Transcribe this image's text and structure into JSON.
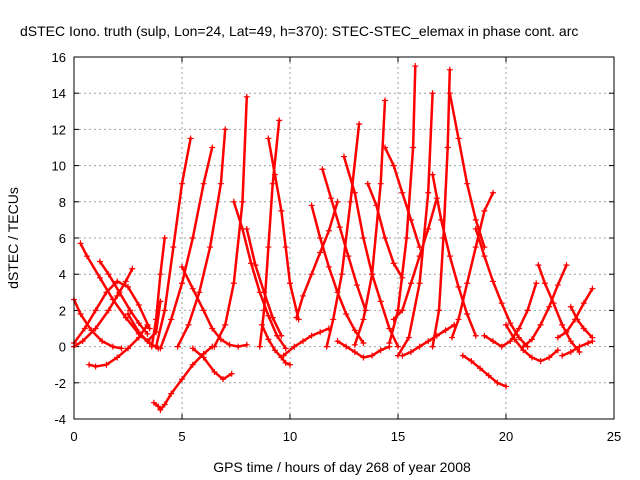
{
  "chart_data": {
    "type": "scatter",
    "title": "dSTEC Iono. truth (sulp, Lon=24, Lat=49, h=370): STEC-STEC_elemax in phase cont. arc",
    "xlabel": "GPS time / hours of day 268 of year 2008",
    "ylabel": "dSTEC  / TECUs",
    "xlim": [
      0,
      25
    ],
    "ylim": [
      -4,
      16
    ],
    "xticks": [
      0,
      5,
      10,
      15,
      20,
      25
    ],
    "yticks": [
      -4,
      -2,
      0,
      2,
      4,
      6,
      8,
      10,
      12,
      14,
      16
    ],
    "grid": true,
    "marker": "+",
    "series_color": "#ff0000",
    "series": [
      {
        "x": [
          0.0,
          0.3,
          0.8,
          1.3,
          1.8,
          2.2
        ],
        "y": [
          2.6,
          1.8,
          0.9,
          0.3,
          0.0,
          -0.1
        ]
      },
      {
        "x": [
          0.0,
          0.4,
          1.0,
          1.6,
          2.0,
          2.4,
          2.7
        ],
        "y": [
          0.0,
          0.3,
          1.0,
          2.0,
          2.8,
          3.6,
          4.3
        ]
      },
      {
        "x": [
          0.3,
          0.6,
          1.2,
          1.8,
          2.4,
          3.0,
          3.5,
          3.9
        ],
        "y": [
          5.7,
          5.0,
          3.8,
          2.6,
          1.6,
          0.7,
          0.2,
          -0.1
        ]
      },
      {
        "x": [
          0.7,
          1.0,
          1.5,
          2.0,
          2.5,
          3.0,
          3.4
        ],
        "y": [
          -1.0,
          -1.1,
          -1.0,
          -0.6,
          -0.1,
          0.5,
          1.2
        ]
      },
      {
        "x": [
          1.2,
          1.6,
          2.1,
          2.6,
          3.0,
          3.4
        ],
        "y": [
          4.7,
          4.0,
          3.0,
          2.0,
          1.3,
          0.7
        ]
      },
      {
        "x": [
          0.0,
          0.5,
          1.0,
          1.5,
          2.0,
          2.5,
          3.0,
          3.5
        ],
        "y": [
          0.2,
          1.0,
          2.0,
          3.0,
          3.6,
          3.3,
          2.3,
          1.0
        ]
      },
      {
        "x": [
          2.5,
          3.0,
          3.4,
          3.8,
          4.0
        ],
        "y": [
          1.8,
          0.8,
          0.3,
          0.8,
          2.5
        ]
      },
      {
        "x": [
          3.6,
          3.8,
          4.0,
          4.2
        ],
        "y": [
          0.0,
          1.5,
          4.0,
          6.0
        ]
      },
      {
        "x": [
          3.7,
          3.9,
          4.0,
          4.2,
          4.5,
          5.0,
          5.5,
          6.0,
          6.4
        ],
        "y": [
          -3.1,
          -3.3,
          -3.5,
          -3.2,
          -2.6,
          -1.8,
          -1.0,
          -0.4,
          0.0
        ]
      },
      {
        "x": [
          3.8,
          4.2,
          4.6,
          5.0,
          5.4
        ],
        "y": [
          0.0,
          2.0,
          5.5,
          9.0,
          11.5
        ]
      },
      {
        "x": [
          4.0,
          4.5,
          5.0,
          5.5,
          6.0,
          6.4
        ],
        "y": [
          -0.1,
          1.5,
          3.5,
          6.0,
          9.0,
          11.0
        ]
      },
      {
        "x": [
          4.8,
          5.3,
          5.8,
          6.3,
          6.8,
          7.0
        ],
        "y": [
          0.0,
          1.2,
          3.0,
          5.5,
          9.0,
          12.0
        ]
      },
      {
        "x": [
          5.0,
          5.5,
          6.0,
          6.4,
          6.8,
          7.2,
          7.6,
          8.0
        ],
        "y": [
          4.4,
          3.2,
          2.0,
          1.0,
          0.4,
          0.1,
          0.0,
          0.1
        ]
      },
      {
        "x": [
          5.5,
          6.0,
          6.5,
          6.9,
          7.3
        ],
        "y": [
          -0.1,
          -0.6,
          -1.4,
          -1.8,
          -1.5
        ]
      },
      {
        "x": [
          6.5,
          7.0,
          7.4,
          7.8,
          8.0
        ],
        "y": [
          0.0,
          1.2,
          3.5,
          8.0,
          13.8
        ]
      },
      {
        "x": [
          7.4,
          7.8,
          8.2,
          8.6,
          9.0,
          9.4,
          9.8
        ],
        "y": [
          8.0,
          6.5,
          4.6,
          3.0,
          1.7,
          0.6,
          -0.1
        ]
      },
      {
        "x": [
          8.0,
          8.4,
          8.8,
          9.2,
          9.6
        ],
        "y": [
          6.5,
          4.5,
          3.0,
          1.6,
          0.6
        ]
      },
      {
        "x": [
          8.6,
          8.8,
          9.0,
          9.2,
          9.5
        ],
        "y": [
          0.0,
          2.0,
          5.5,
          9.0,
          12.5
        ]
      },
      {
        "x": [
          9.0,
          9.3,
          9.6,
          9.8,
          10.0,
          10.4
        ],
        "y": [
          11.5,
          9.5,
          7.5,
          5.5,
          3.5,
          1.5
        ]
      },
      {
        "x": [
          8.7,
          9.0,
          9.3,
          9.6,
          9.8,
          10.0
        ],
        "y": [
          1.2,
          0.4,
          -0.2,
          -0.6,
          -0.9,
          -1.0
        ]
      },
      {
        "x": [
          9.7,
          10.2,
          10.6,
          11.0,
          11.4,
          11.8
        ],
        "y": [
          -0.5,
          0.0,
          0.3,
          0.6,
          0.8,
          1.0
        ]
      },
      {
        "x": [
          10.3,
          10.6,
          11.0,
          11.4,
          11.8,
          12.2
        ],
        "y": [
          1.6,
          2.8,
          4.0,
          5.2,
          6.4,
          8.0
        ]
      },
      {
        "x": [
          11.0,
          11.4,
          11.8,
          12.2,
          12.6,
          13.0,
          13.4
        ],
        "y": [
          7.8,
          6.0,
          4.4,
          3.0,
          1.8,
          0.9,
          0.2
        ]
      },
      {
        "x": [
          11.5,
          11.9,
          12.3,
          12.7,
          13.1,
          13.5
        ],
        "y": [
          9.8,
          8.2,
          6.6,
          5.0,
          3.4,
          2.0
        ]
      },
      {
        "x": [
          11.7,
          12.0,
          12.4,
          12.8,
          13.2
        ],
        "y": [
          0.0,
          1.5,
          4.0,
          8.0,
          12.3
        ]
      },
      {
        "x": [
          12.2,
          12.6,
          13.0,
          13.4,
          13.8,
          14.2,
          14.6
        ],
        "y": [
          0.3,
          0.0,
          -0.3,
          -0.6,
          -0.5,
          -0.2,
          0.0
        ]
      },
      {
        "x": [
          12.5,
          13.0,
          13.4,
          13.8,
          14.2,
          14.6,
          15.0
        ],
        "y": [
          10.5,
          8.5,
          6.0,
          4.0,
          2.5,
          1.0,
          0.0
        ]
      },
      {
        "x": [
          13.0,
          13.4,
          13.8,
          14.2,
          14.4
        ],
        "y": [
          0.1,
          1.5,
          4.0,
          9.0,
          13.6
        ]
      },
      {
        "x": [
          13.6,
          14.0,
          14.4,
          14.8,
          15.2
        ],
        "y": [
          9.0,
          7.8,
          6.0,
          4.6,
          3.8
        ]
      },
      {
        "x": [
          14.4,
          14.8,
          15.2,
          15.6,
          16.0
        ],
        "y": [
          11.0,
          10.0,
          8.5,
          7.0,
          5.5
        ]
      },
      {
        "x": [
          14.8,
          15.2,
          15.6,
          16.0,
          16.4,
          16.8
        ],
        "y": [
          1.5,
          2.0,
          3.5,
          5.0,
          6.5,
          8.2
        ]
      },
      {
        "x": [
          14.6,
          15.0,
          15.4,
          15.7,
          15.8
        ],
        "y": [
          0.2,
          2.0,
          6.0,
          11.0,
          15.5
        ]
      },
      {
        "x": [
          15.0,
          15.5,
          16.0,
          16.4,
          16.6
        ],
        "y": [
          -0.5,
          0.5,
          3.5,
          8.5,
          14.0
        ]
      },
      {
        "x": [
          15.2,
          15.6,
          16.0,
          16.4,
          16.8,
          17.2,
          17.6
        ],
        "y": [
          -0.5,
          -0.3,
          0.0,
          0.3,
          0.6,
          0.9,
          1.2
        ]
      },
      {
        "x": [
          16.6,
          17.0,
          17.4,
          17.8,
          18.2,
          18.6
        ],
        "y": [
          9.5,
          7.0,
          5.0,
          3.3,
          1.8,
          0.6
        ]
      },
      {
        "x": [
          16.6,
          16.9,
          17.1,
          17.3,
          17.4
        ],
        "y": [
          0.0,
          2.0,
          6.0,
          11.0,
          15.3
        ]
      },
      {
        "x": [
          17.4,
          17.8,
          18.2,
          18.6,
          19.0
        ],
        "y": [
          14.0,
          11.5,
          9.0,
          7.0,
          5.5
        ]
      },
      {
        "x": [
          17.5,
          17.8,
          18.2,
          18.6,
          19.0,
          19.4
        ],
        "y": [
          0.5,
          1.5,
          3.5,
          5.5,
          7.5,
          8.5
        ]
      },
      {
        "x": [
          18.0,
          18.4,
          18.8,
          19.2,
          19.6,
          20.0
        ],
        "y": [
          -0.5,
          -0.8,
          -1.2,
          -1.6,
          -2.0,
          -2.2
        ]
      },
      {
        "x": [
          18.6,
          19.0,
          19.4,
          19.8,
          20.2,
          20.6,
          21.0
        ],
        "y": [
          6.5,
          5.0,
          3.6,
          2.4,
          1.3,
          0.5,
          0.0
        ]
      },
      {
        "x": [
          19.0,
          19.4,
          19.8,
          20.2,
          20.6,
          21.0,
          21.4
        ],
        "y": [
          0.6,
          0.3,
          0.0,
          0.3,
          1.0,
          2.0,
          3.5
        ]
      },
      {
        "x": [
          20.0,
          20.4,
          20.8,
          21.2,
          21.6,
          22.0,
          22.4
        ],
        "y": [
          1.2,
          0.4,
          -0.2,
          -0.6,
          -0.8,
          -0.6,
          -0.2
        ]
      },
      {
        "x": [
          20.8,
          21.2,
          21.6,
          22.0,
          22.4,
          22.8
        ],
        "y": [
          0.0,
          0.4,
          1.2,
          2.2,
          3.4,
          4.5
        ]
      },
      {
        "x": [
          21.5,
          21.8,
          22.2,
          22.6,
          23.0,
          23.4
        ],
        "y": [
          4.5,
          3.5,
          2.4,
          1.2,
          0.3,
          -0.3
        ]
      },
      {
        "x": [
          22.6,
          23.0,
          23.4,
          23.8,
          24.0
        ],
        "y": [
          -0.5,
          -0.3,
          0.0,
          0.2,
          0.3
        ]
      },
      {
        "x": [
          22.4,
          22.8,
          23.2,
          23.6,
          24.0
        ],
        "y": [
          0.5,
          0.8,
          1.5,
          2.4,
          3.2
        ]
      },
      {
        "x": [
          23.0,
          23.3,
          23.6,
          24.0
        ],
        "y": [
          2.2,
          1.5,
          1.0,
          0.5
        ]
      }
    ]
  }
}
